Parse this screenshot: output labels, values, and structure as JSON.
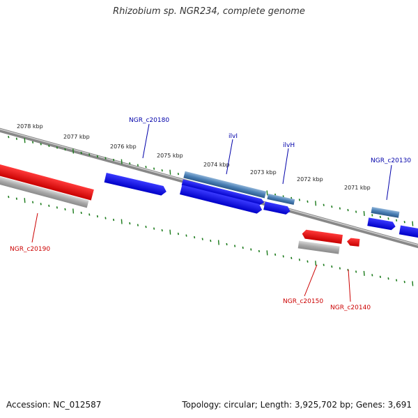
{
  "title": "Rhizobium sp. NGR234, complete genome",
  "footer": {
    "accession": "Accession: NC_012587",
    "topology": "Topology: circular; Length: 3,925,702 bp; Genes: 3,691"
  },
  "scale": {
    "labels": [
      "2078 kbp",
      "2077 kbp",
      "2076 kbp",
      "2075 kbp",
      "2074 kbp",
      "2073 kbp",
      "2072 kbp",
      "2071 kbp"
    ]
  },
  "gene_labels": [
    {
      "name": "NGR_c20180",
      "strand": "forward"
    },
    {
      "name": "ilvI",
      "strand": "forward"
    },
    {
      "name": "ilvH",
      "strand": "forward"
    },
    {
      "name": "NGR_c20130",
      "strand": "forward"
    },
    {
      "name": "NGR_c20190",
      "strand": "reverse"
    },
    {
      "name": "NGR_c20150",
      "strand": "reverse"
    },
    {
      "name": "NGR_c20140",
      "strand": "reverse"
    }
  ],
  "colors": {
    "forward_gene": "#0000ee",
    "forward_cds": "#4a7fb5",
    "reverse_gene": "#ee0000",
    "reverse_cds": "#b0b0b0",
    "backbone": "#777777",
    "ticks": "#1a7a1a",
    "forward_label": "#0000aa",
    "reverse_label": "#cc0000"
  }
}
